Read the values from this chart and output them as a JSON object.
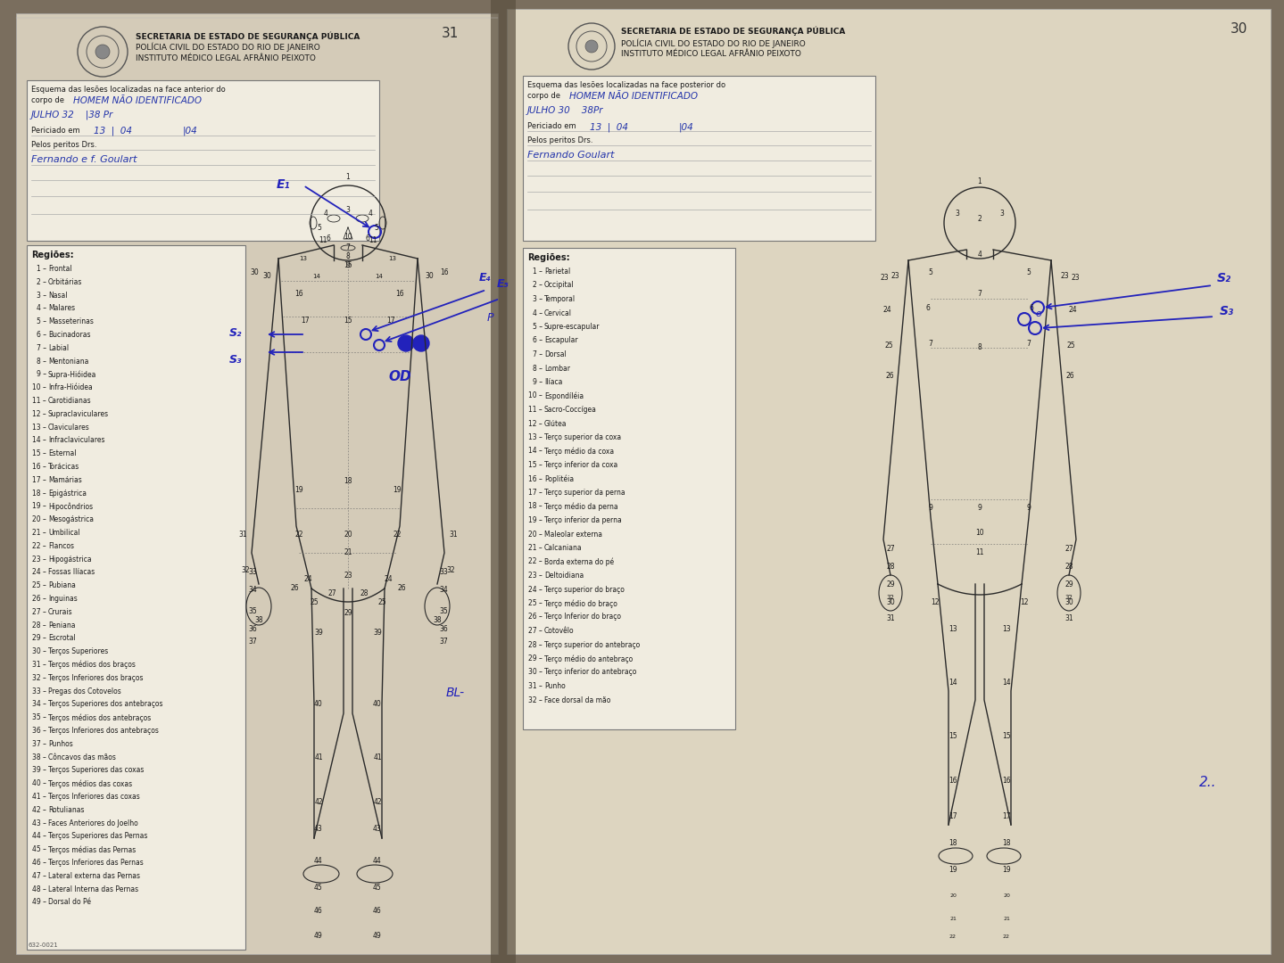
{
  "bg_color": "#7a6e5e",
  "left_page_color": "#d4cbb8",
  "right_page_color": "#ddd5c0",
  "center_shadow": "#5a5040",
  "form_bg": "#e8e2d0",
  "white_box": "#f0ece0",
  "body_line_color": "#2a2a2a",
  "wound_color": "#2222bb",
  "text_color": "#1a1a1a",
  "light_text": "#333333",
  "header_text_color": "#111111",
  "left_page_num": "31",
  "right_page_num": "30",
  "title_line1": "SECRETARIA DE ESTADO DE SEGURANÇA PÚBLICA",
  "title_line2": "POLÍCIA CIVIL DO ESTADO DO RIO DE JANEIRO",
  "title_line3": "INSTITUTO MÉDICO LEGAL AFRÂNIO PEIXOTO",
  "left_form_header": "Esquema das lesões localizadas na face anterior do",
  "left_form_header2": "corpo de",
  "right_form_header": "Esquema das lesões localizadas na face posterior do",
  "right_form_header2": "corpo de",
  "handwriting_color": "#2233aa",
  "hw_name": "HOMEM NÃO IDENTIFICADO",
  "hw_date_left": "JULHO  32    |38 Pr",
  "hw_pericias_left": "13  |  04       |04",
  "hw_sig_left": "Fernando e f. Goulart",
  "hw_date_right": "JULHO  30      38Pr",
  "hw_pericias_right": "13  |  04    |04",
  "hw_sig_right": "Fernando Goulart",
  "periciado_label": "Periciado em",
  "peritos_label": "Pelos peritos Drs.",
  "regioes_label": "Regiões:",
  "form_number": "632-0021",
  "regions_left": [
    [
      "1",
      "Frontal"
    ],
    [
      "2",
      "Orbitárias"
    ],
    [
      "3",
      "Nasal"
    ],
    [
      "4",
      "Malares"
    ],
    [
      "5",
      "Masseterinas"
    ],
    [
      "6",
      "Bucinadoras"
    ],
    [
      "7",
      "Labial"
    ],
    [
      "8",
      "Mentoniana"
    ],
    [
      "9",
      "Supra-Hióidea"
    ],
    [
      "10",
      "Infra-Hióidea"
    ],
    [
      "11",
      "Carotidianas"
    ],
    [
      "12",
      "Supraclaviculares"
    ],
    [
      "13",
      "Claviculares"
    ],
    [
      "14",
      "Infraclaviculares"
    ],
    [
      "15",
      "Esternal"
    ],
    [
      "16",
      "Torácicas"
    ],
    [
      "17",
      "Mamárias"
    ],
    [
      "18",
      "Epigástrica"
    ],
    [
      "19",
      "Hipocôndrios"
    ],
    [
      "20",
      "Mesogástrica"
    ],
    [
      "21",
      "Umbilical"
    ],
    [
      "22",
      "Flancos"
    ],
    [
      "23",
      "Hipogástrica"
    ],
    [
      "24",
      "Fossas Ilíacas"
    ],
    [
      "25",
      "Pubiana"
    ],
    [
      "26",
      "Inguinas"
    ],
    [
      "27",
      "Crurais"
    ],
    [
      "28",
      "Peniana"
    ],
    [
      "29",
      "Escrotal"
    ],
    [
      "30",
      "Terços Superiores"
    ],
    [
      "31",
      "Terços médios dos braços"
    ],
    [
      "32",
      "Terços Inferiores dos braços"
    ],
    [
      "33",
      "Pregas dos Cotovelos"
    ],
    [
      "34",
      "Terços Superiores dos antebraços"
    ],
    [
      "35",
      "Terços médios dos antebraços"
    ],
    [
      "36",
      "Terços Inferiores dos antebraços"
    ],
    [
      "37",
      "Punhos"
    ],
    [
      "38",
      "Côncavos das mãos"
    ],
    [
      "39",
      "Terços Superiores das coxas"
    ],
    [
      "40",
      "Terços médios das coxas"
    ],
    [
      "41",
      "Terços Inferiores das coxas"
    ],
    [
      "42",
      "Rotulianas"
    ],
    [
      "43",
      "Faces Anteriores do Joelho"
    ],
    [
      "44",
      "Terços Superiores das Pernas"
    ],
    [
      "45",
      "Terços médias das Pernas"
    ],
    [
      "46",
      "Terços Inferiores das Pernas"
    ],
    [
      "47",
      "Lateral externa das Pernas"
    ],
    [
      "48",
      "Lateral Interna das Pernas"
    ],
    [
      "49",
      "Dorsal do Pé"
    ]
  ],
  "regions_right": [
    [
      "1",
      "Parietal"
    ],
    [
      "2",
      "Occipital"
    ],
    [
      "3",
      "Temporal"
    ],
    [
      "4",
      "Cervical"
    ],
    [
      "5",
      "Supre-escapular"
    ],
    [
      "6",
      "Escapular"
    ],
    [
      "7",
      "Dorsal"
    ],
    [
      "8",
      "Lombar"
    ],
    [
      "9",
      "Ilíaca"
    ],
    [
      "10",
      "Espondíléia"
    ],
    [
      "11",
      "Sacro-Coccígea"
    ],
    [
      "12",
      "Glútea"
    ],
    [
      "13",
      "Terço superior da coxa"
    ],
    [
      "14",
      "Terço médio da coxa"
    ],
    [
      "15",
      "Terço inferior da coxa"
    ],
    [
      "16",
      "Poplitéia"
    ],
    [
      "17",
      "Terço superior da perna"
    ],
    [
      "18",
      "Terço médio da perna"
    ],
    [
      "19",
      "Terço inferior da perna"
    ],
    [
      "20",
      "Maleolar externa"
    ],
    [
      "21",
      "Calcaniana"
    ],
    [
      "22",
      "Borda externa do pé"
    ],
    [
      "23",
      "Deltoidiana"
    ],
    [
      "24",
      "Terço superior do braço"
    ],
    [
      "25",
      "Terço médio do braço"
    ],
    [
      "26",
      "Terço Inferior do braço"
    ],
    [
      "27",
      "Cotovêlo"
    ],
    [
      "28",
      "Terço superior do antebraço"
    ],
    [
      "29",
      "Terço médio do antebraço"
    ],
    [
      "30",
      "Terço inferior do antebraço"
    ],
    [
      "31",
      "Punho"
    ],
    [
      "32",
      "Face dorsal da mão"
    ]
  ]
}
